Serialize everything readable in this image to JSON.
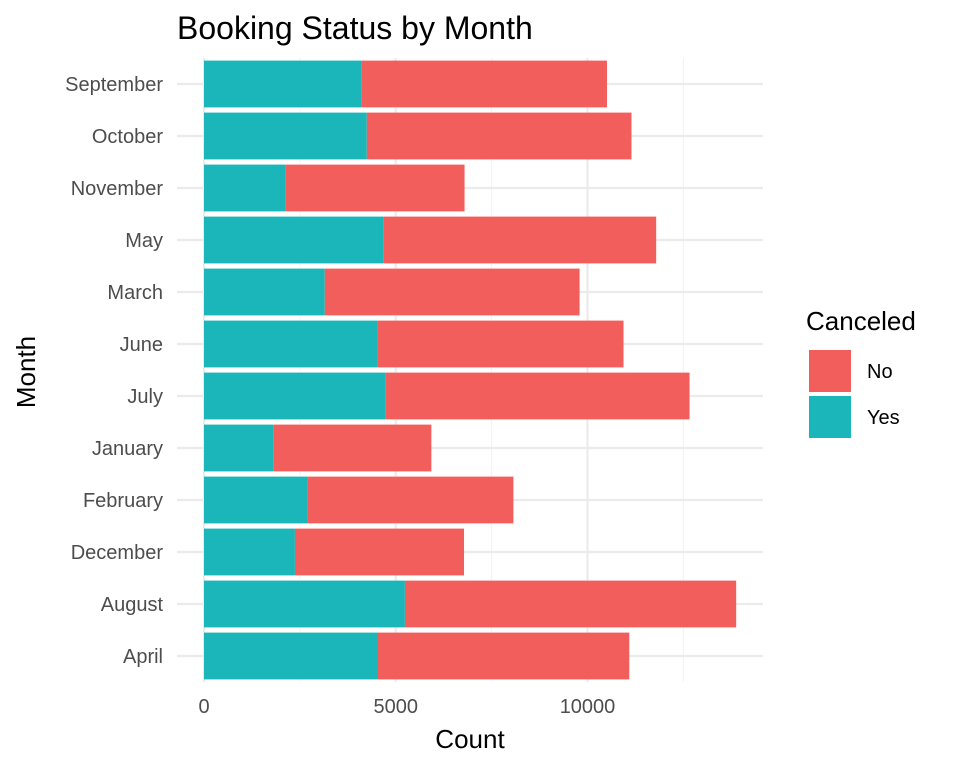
{
  "chart_data": {
    "type": "bar",
    "orientation": "horizontal",
    "stacked": true,
    "title": "Booking Status by Month",
    "xlabel": "Count",
    "ylabel": "Month",
    "xlim": [
      0,
      14600
    ],
    "x_ticks": [
      0,
      5000,
      10000
    ],
    "grid": true,
    "categories": [
      "April",
      "August",
      "December",
      "February",
      "January",
      "July",
      "June",
      "March",
      "May",
      "November",
      "October",
      "September"
    ],
    "legend": {
      "title": "Canceled",
      "placement": "right"
    },
    "series": [
      {
        "name": "Yes",
        "color": "#1bb6b9",
        "values": [
          4524,
          5239,
          2371,
          2696,
          1807,
          4742,
          4535,
          3149,
          4677,
          2122,
          4246,
          4116
        ]
      },
      {
        "name": "No",
        "color": "#f25e5b",
        "values": [
          6565,
          8638,
          4409,
          5372,
          4122,
          7919,
          6404,
          6645,
          7114,
          4672,
          6901,
          6392
        ]
      }
    ]
  }
}
